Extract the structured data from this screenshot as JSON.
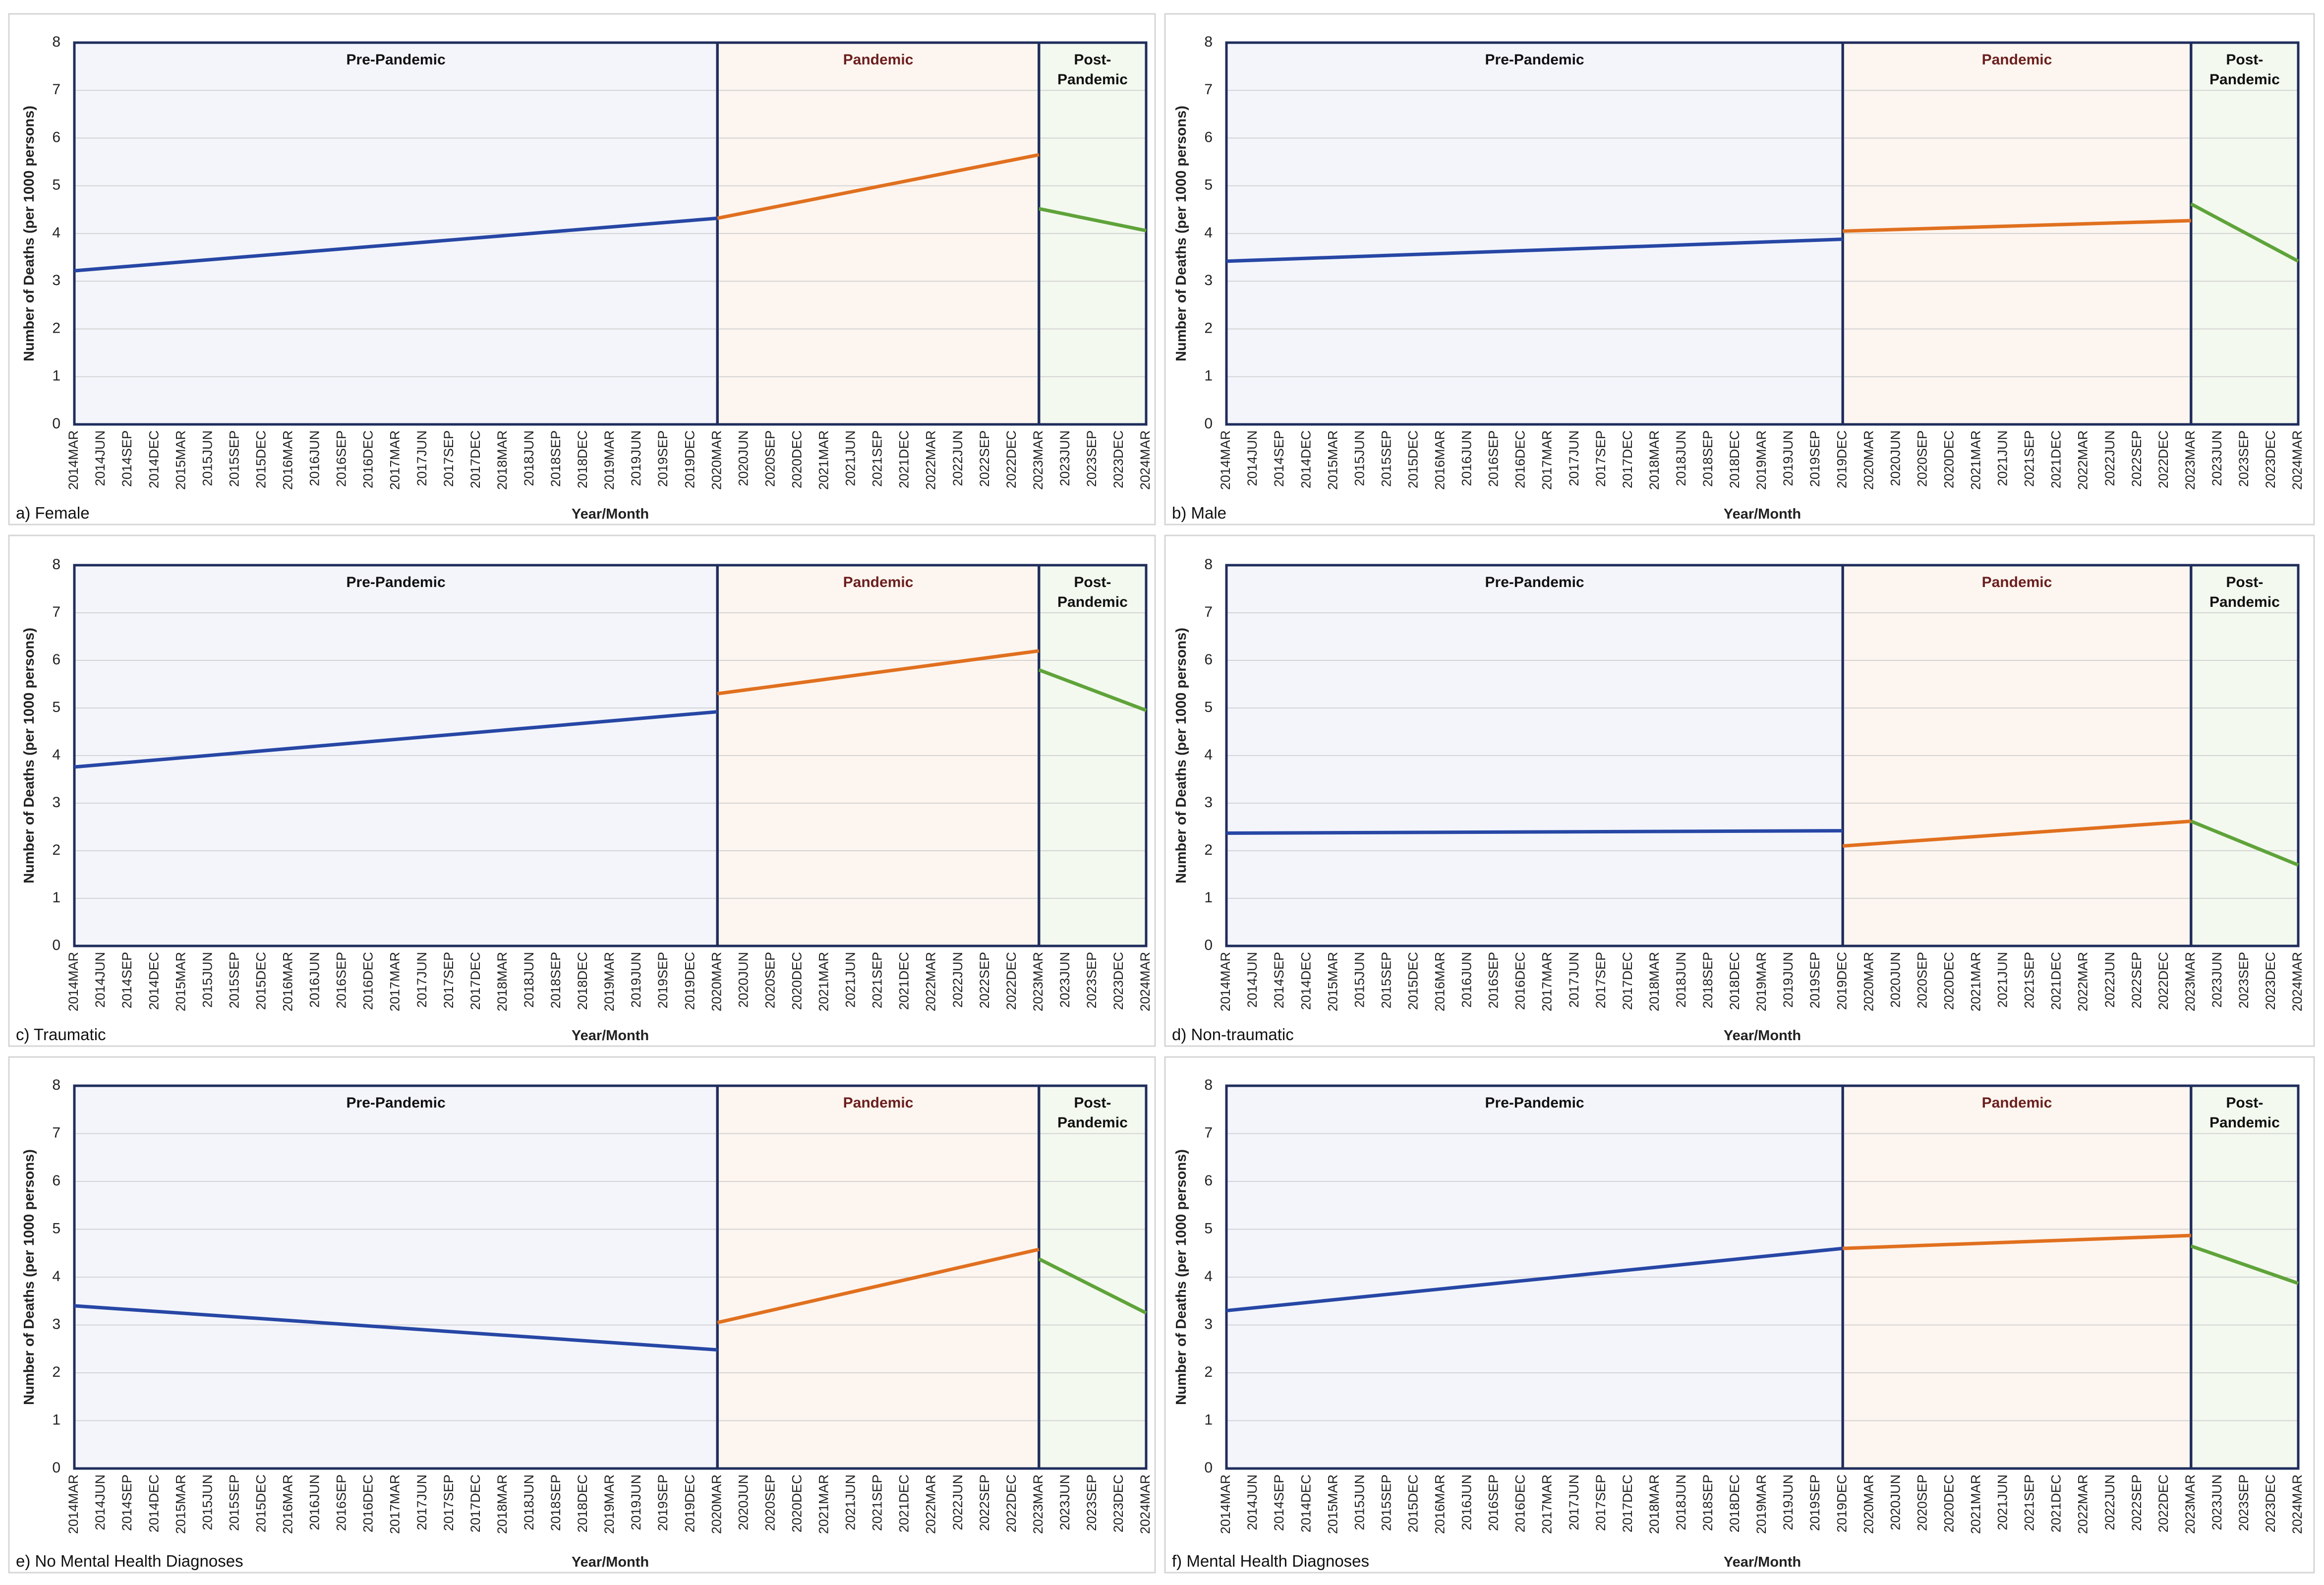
{
  "chart_data": {
    "type": "line",
    "ylabel": "Number of Deaths (per 1000 persons)",
    "xlabel": "Year/Month",
    "ylim": [
      0,
      8
    ],
    "yticks": [
      0,
      1,
      2,
      3,
      4,
      5,
      6,
      7,
      8
    ],
    "grid": true,
    "x_categories": [
      "2014MAR",
      "2014JUN",
      "2014SEP",
      "2014DEC",
      "2015MAR",
      "2015JUN",
      "2015SEP",
      "2015DEC",
      "2016MAR",
      "2016JUN",
      "2016SEP",
      "2016DEC",
      "2017MAR",
      "2017JUN",
      "2017SEP",
      "2017DEC",
      "2018MAR",
      "2018JUN",
      "2018SEP",
      "2018DEC",
      "2019MAR",
      "2019JUN",
      "2019SEP",
      "2019DEC",
      "2020MAR",
      "2020JUN",
      "2020SEP",
      "2020DEC",
      "2021MAR",
      "2021JUN",
      "2021SEP",
      "2021DEC",
      "2022MAR",
      "2022JUN",
      "2022SEP",
      "2022DEC",
      "2023MAR",
      "2023JUN",
      "2023SEP",
      "2023DEC",
      "2024MAR"
    ],
    "periods": [
      {
        "label": "Pre-Pandemic",
        "start": "2014MAR",
        "end": "2020MAR",
        "fill": "#f3f5fb",
        "text_color": "#111111",
        "line_color": "#2747a5"
      },
      {
        "label": "Pandemic",
        "start": "2020MAR",
        "end": "2023MAR",
        "fill": "#fdf5ef",
        "text_color": "#6b1f1f",
        "line_color": "#e0701f"
      },
      {
        "label": "Post-\nPandemic",
        "start": "2023MAR",
        "end": "2024MAR",
        "fill": "#f3f9ef",
        "text_color": "#111111",
        "line_color": "#5fa33a"
      }
    ],
    "panels": [
      {
        "label": "a) Female",
        "period_bounds": [
          "2020MAR",
          "2023MAR"
        ],
        "segments": [
          {
            "period": "Pre-Pandemic",
            "points": [
              [
                "2014MAR",
                3.22
              ],
              [
                "2020MAR",
                4.32
              ]
            ]
          },
          {
            "period": "Pandemic",
            "points": [
              [
                "2020MAR",
                4.32
              ],
              [
                "2023MAR",
                5.65
              ]
            ]
          },
          {
            "period": "Post-\nPandemic",
            "points": [
              [
                "2023MAR",
                4.52
              ],
              [
                "2024MAR",
                4.06
              ]
            ]
          }
        ]
      },
      {
        "label": "b) Male",
        "period_bounds": [
          "2019DEC",
          "2023MAR"
        ],
        "segments": [
          {
            "period": "Pre-Pandemic",
            "points": [
              [
                "2014MAR",
                3.42
              ],
              [
                "2019DEC",
                3.88
              ]
            ]
          },
          {
            "period": "Pandemic",
            "points": [
              [
                "2019DEC",
                4.05
              ],
              [
                "2023MAR",
                4.27
              ]
            ]
          },
          {
            "period": "Post-\nPandemic",
            "points": [
              [
                "2023MAR",
                4.62
              ],
              [
                "2024MAR",
                3.42
              ]
            ]
          }
        ]
      },
      {
        "label": "c) Traumatic",
        "period_bounds": [
          "2020MAR",
          "2023MAR"
        ],
        "segments": [
          {
            "period": "Pre-Pandemic",
            "points": [
              [
                "2014MAR",
                3.76
              ],
              [
                "2020MAR",
                4.92
              ]
            ]
          },
          {
            "period": "Pandemic",
            "points": [
              [
                "2020MAR",
                5.3
              ],
              [
                "2023MAR",
                6.2
              ]
            ]
          },
          {
            "period": "Post-\nPandemic",
            "points": [
              [
                "2023MAR",
                5.8
              ],
              [
                "2024MAR",
                4.95
              ]
            ]
          }
        ]
      },
      {
        "label": "d) Non-traumatic",
        "period_bounds": [
          "2019DEC",
          "2023MAR"
        ],
        "segments": [
          {
            "period": "Pre-Pandemic",
            "points": [
              [
                "2014MAR",
                2.37
              ],
              [
                "2019DEC",
                2.42
              ]
            ]
          },
          {
            "period": "Pandemic",
            "points": [
              [
                "2019DEC",
                2.1
              ],
              [
                "2023MAR",
                2.62
              ]
            ]
          },
          {
            "period": "Post-\nPandemic",
            "points": [
              [
                "2023MAR",
                2.62
              ],
              [
                "2024MAR",
                1.7
              ]
            ]
          }
        ]
      },
      {
        "label": "e) No Mental Health Diagnoses",
        "period_bounds": [
          "2020MAR",
          "2023MAR"
        ],
        "segments": [
          {
            "period": "Pre-Pandemic",
            "points": [
              [
                "2014MAR",
                3.4
              ],
              [
                "2020MAR",
                2.48
              ]
            ]
          },
          {
            "period": "Pandemic",
            "points": [
              [
                "2020MAR",
                3.05
              ],
              [
                "2023MAR",
                4.58
              ]
            ]
          },
          {
            "period": "Post-\nPandemic",
            "points": [
              [
                "2023MAR",
                4.38
              ],
              [
                "2024MAR",
                3.25
              ]
            ]
          }
        ]
      },
      {
        "label": "f) Mental Health Diagnoses",
        "period_bounds": [
          "2019DEC",
          "2023MAR"
        ],
        "segments": [
          {
            "period": "Pre-Pandemic",
            "points": [
              [
                "2014MAR",
                3.3
              ],
              [
                "2019DEC",
                4.6
              ]
            ]
          },
          {
            "period": "Pandemic",
            "points": [
              [
                "2019DEC",
                4.6
              ],
              [
                "2023MAR",
                4.87
              ]
            ]
          },
          {
            "period": "Post-\nPandemic",
            "points": [
              [
                "2023MAR",
                4.65
              ],
              [
                "2024MAR",
                3.87
              ]
            ]
          }
        ]
      }
    ]
  }
}
